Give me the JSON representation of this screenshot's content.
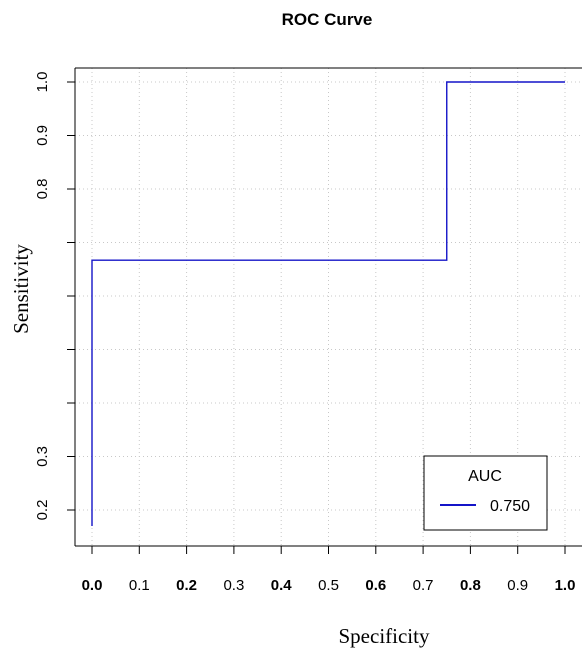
{
  "chart_data": {
    "type": "line",
    "title": "ROC Curve",
    "xlabel": "Specificity",
    "ylabel": "Sensitivity",
    "xlim": [
      0,
      1
    ],
    "ylim": [
      0.17,
      1.0
    ],
    "x_ticks": [
      "0.0",
      "0.1",
      "0.2",
      "0.3",
      "0.4",
      "0.5",
      "0.6",
      "0.7",
      "0.8",
      "0.9",
      "1.0"
    ],
    "x_ticks_bold": [
      true,
      false,
      true,
      false,
      true,
      false,
      true,
      false,
      true,
      false,
      true
    ],
    "y_ticks": [
      {
        "value": 0.2,
        "label": "0.2"
      },
      {
        "value": 0.3,
        "label": "0.3"
      },
      {
        "value": 0.4,
        "label": ""
      },
      {
        "value": 0.5,
        "label": ""
      },
      {
        "value": 0.6,
        "label": ""
      },
      {
        "value": 0.7,
        "label": ""
      },
      {
        "value": 0.8,
        "label": "0.8"
      },
      {
        "value": 0.9,
        "label": "0.9"
      },
      {
        "value": 1.0,
        "label": "1.0"
      }
    ],
    "grid": true,
    "series": [
      {
        "color": "#1414c8",
        "points": [
          [
            0.0,
            0.17
          ],
          [
            0.0,
            0.667
          ],
          [
            0.75,
            0.667
          ],
          [
            0.75,
            1.0
          ],
          [
            1.0,
            1.0
          ]
        ]
      }
    ],
    "legend": {
      "title": "AUC",
      "entries": [
        {
          "label": "0.750",
          "color": "#1414c8"
        }
      ],
      "position": "bottom-right"
    }
  }
}
